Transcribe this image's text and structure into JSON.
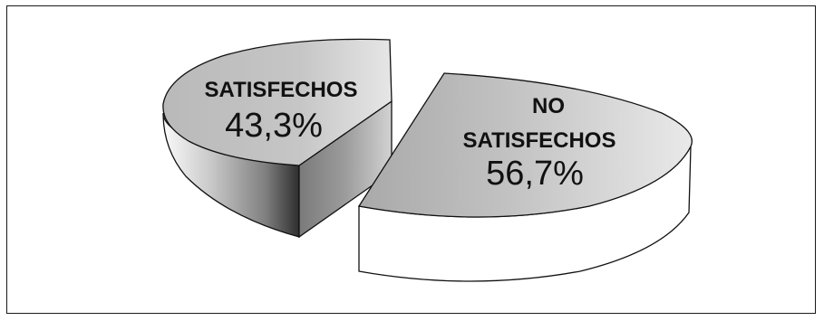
{
  "chart_data": {
    "type": "pie",
    "style": "3d-exploded",
    "slices": [
      {
        "name_lines": [
          "SATISFECHOS"
        ],
        "value": 43.3,
        "value_label": "43,3%",
        "color": "#b3b3b3"
      },
      {
        "name_lines": [
          "NO",
          "SATISFECHOS"
        ],
        "value": 56.7,
        "value_label": "56,7%",
        "color": "#b3b3b3"
      }
    ],
    "legend": "none"
  }
}
